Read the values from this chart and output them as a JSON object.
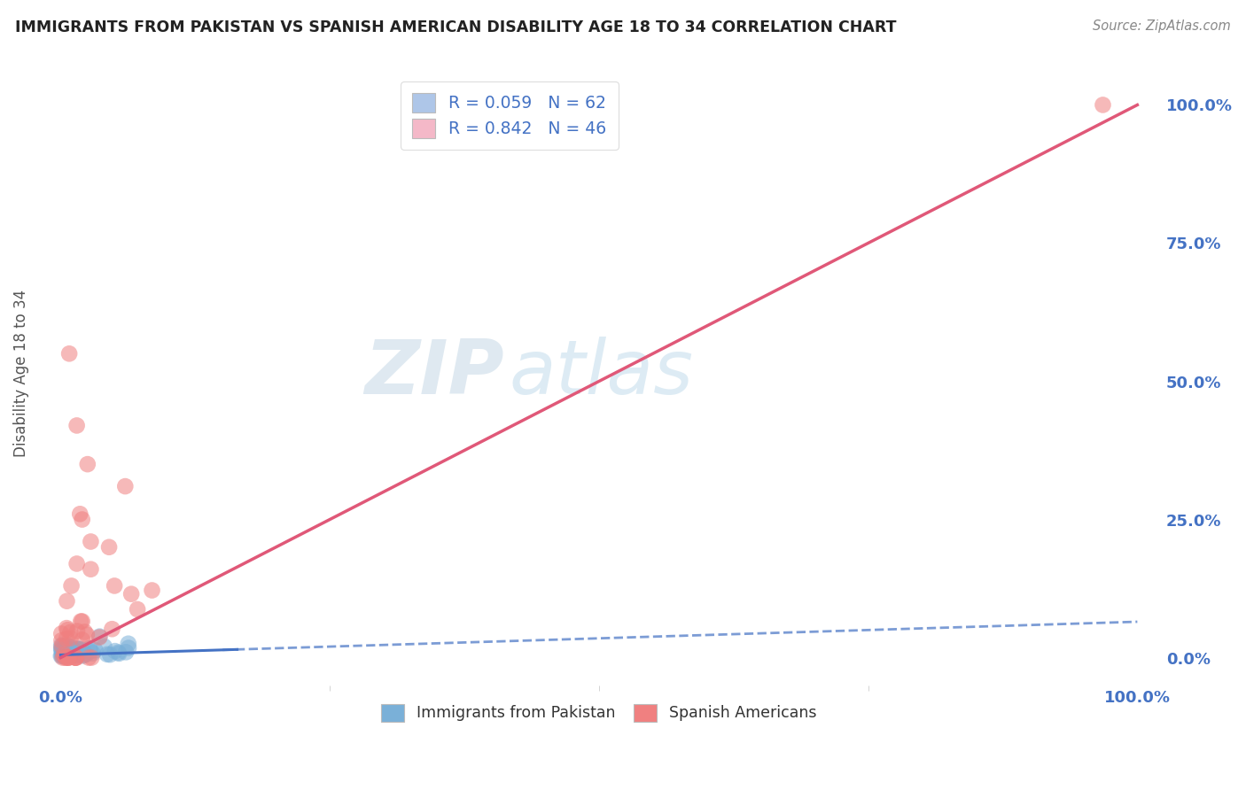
{
  "title": "IMMIGRANTS FROM PAKISTAN VS SPANISH AMERICAN DISABILITY AGE 18 TO 34 CORRELATION CHART",
  "source": "Source: ZipAtlas.com",
  "ylabel": "Disability Age 18 to 34",
  "xlim": [
    -0.02,
    1.02
  ],
  "ylim": [
    -0.05,
    1.08
  ],
  "x_axis_labels": [
    "0.0%",
    "100.0%"
  ],
  "x_axis_positions": [
    0.0,
    1.0
  ],
  "yticks": [
    0.0,
    0.25,
    0.5,
    0.75,
    1.0
  ],
  "yticklabels": [
    "0.0%",
    "25.0%",
    "50.0%",
    "75.0%",
    "100.0%"
  ],
  "legend_entries": [
    {
      "label": "R = 0.059   N = 62",
      "color": "#aec6e8",
      "R": 0.059,
      "N": 62
    },
    {
      "label": "R = 0.842   N = 46",
      "color": "#f4b8c8",
      "R": 0.842,
      "N": 46
    }
  ],
  "pakistan_color": "#7ab0d8",
  "pakistan_line_color": "#4472c4",
  "spanish_color": "#f08080",
  "spanish_line_color": "#e05878",
  "watermark_zip": "ZIP",
  "watermark_atlas": "atlas",
  "background_color": "#ffffff",
  "grid_color": "#cccccc",
  "title_color": "#222222",
  "tick_label_color": "#4472c4",
  "ylabel_color": "#555555"
}
